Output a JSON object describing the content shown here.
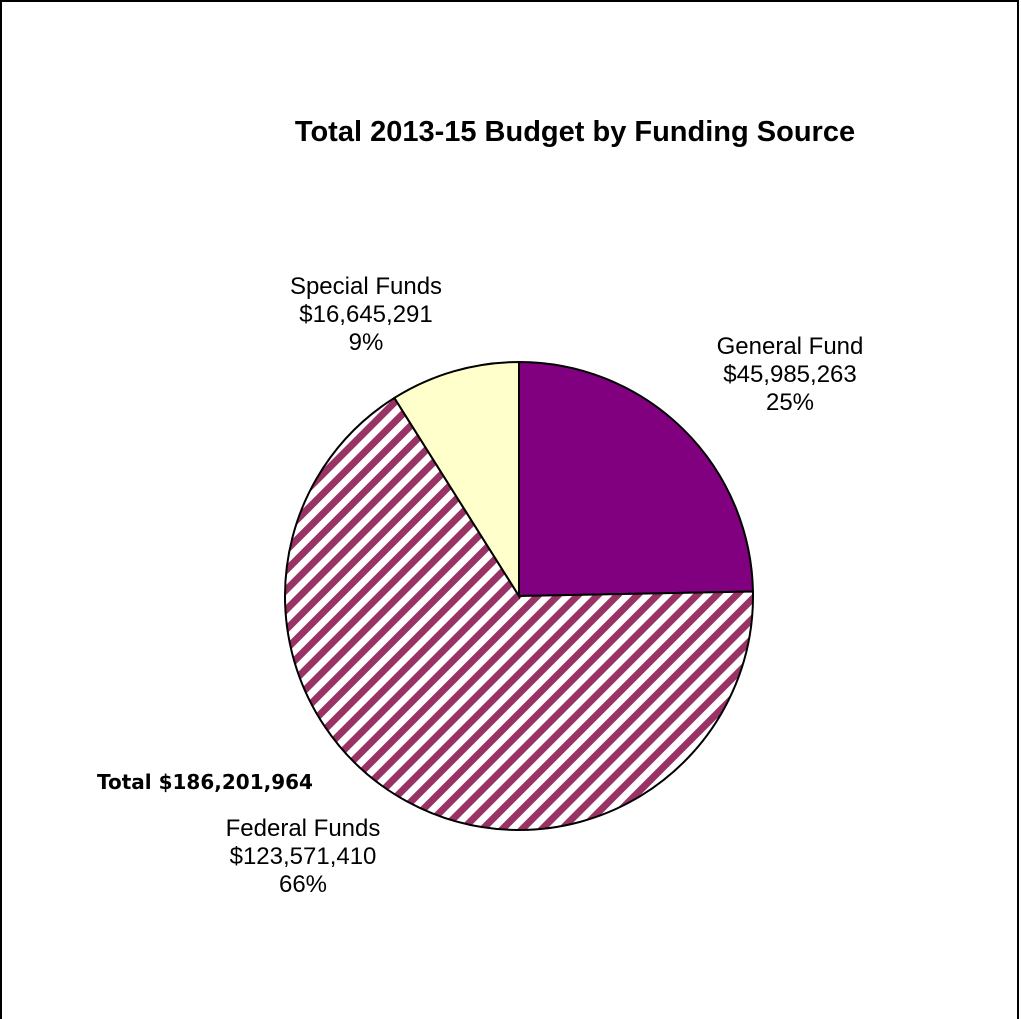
{
  "chart_data": {
    "type": "pie",
    "title": "Total 2013-15 Budget by Funding Source",
    "slices": [
      {
        "name": "General Fund",
        "amount": "$45,985,263",
        "percent": "25%",
        "value": 45985263,
        "color": "#800080",
        "pattern": "solid"
      },
      {
        "name": "Federal Funds",
        "amount": "$123,571,410",
        "percent": "66%",
        "value": 123571410,
        "color": "#993366",
        "pattern": "diagonal-stripes"
      },
      {
        "name": "Special Funds",
        "amount": "$16,645,291",
        "percent": "9%",
        "value": 16645291,
        "color": "#ffffcc",
        "pattern": "solid"
      }
    ],
    "start_angle": "12 o'clock, clockwise",
    "legend": "none (data labels on slices)"
  },
  "footer": {
    "total": "Total $186,201,964"
  }
}
